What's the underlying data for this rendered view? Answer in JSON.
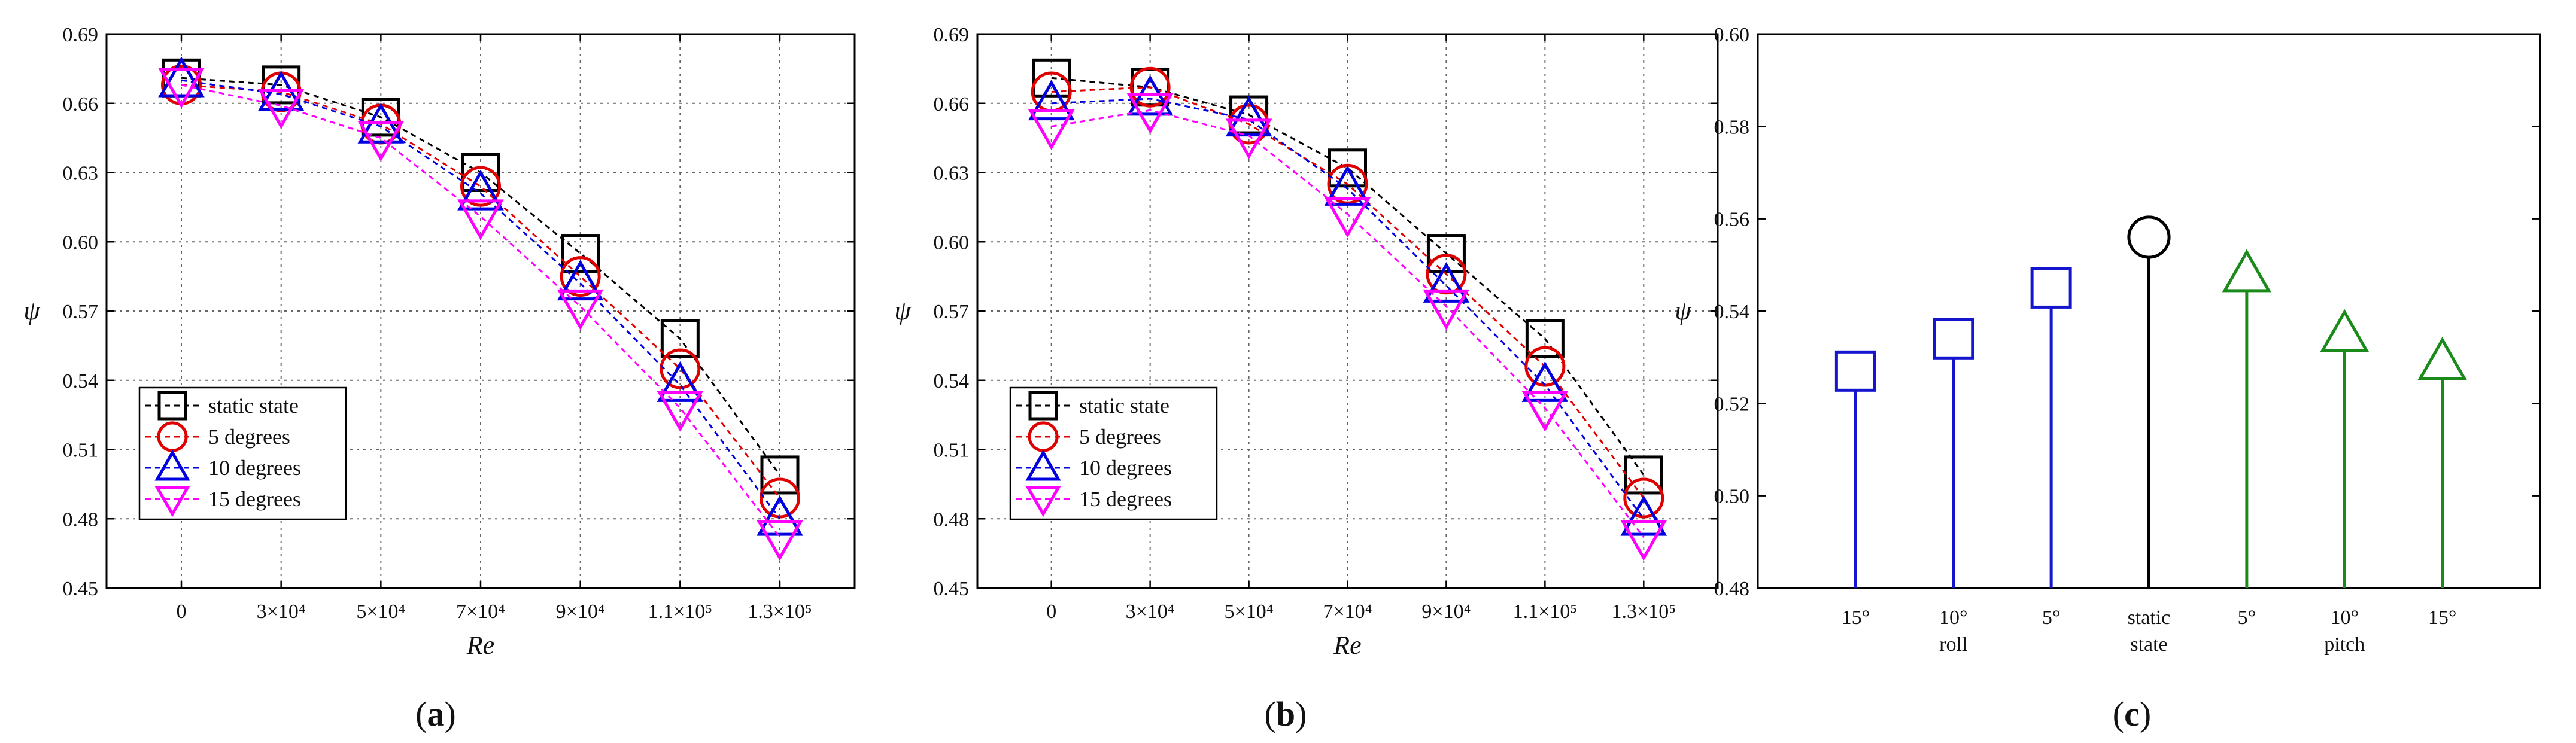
{
  "figure": {
    "labels": [
      {
        "open": "(",
        "letter": "a",
        "close": ")"
      },
      {
        "open": "(",
        "letter": "b",
        "close": ")"
      },
      {
        "open": "(",
        "letter": "c",
        "close": ")"
      }
    ]
  },
  "colors": {
    "static": "#000000",
    "deg5": "#e00000",
    "deg10": "#0000e0",
    "deg15": "#ff00ff",
    "roll": "#1515d0",
    "pitch": "#1a8a1a",
    "grid": "#666666"
  },
  "chart_data": [
    {
      "type": "line",
      "panel": "a",
      "xlabel": "Re",
      "ylabel": "ψ",
      "categories": [
        "0",
        "3×10⁴",
        "5×10⁴",
        "7×10⁴",
        "9×10⁴",
        "1.1×10⁵",
        "1.3×10⁵"
      ],
      "ylim": [
        0.45,
        0.69
      ],
      "yticks": [
        "0.45",
        "0.48",
        "0.51",
        "0.54",
        "0.57",
        "0.60",
        "0.63",
        "0.66",
        "0.69"
      ],
      "grid": true,
      "legend_position": "lower-left",
      "series": [
        {
          "name": "static state",
          "marker": "square",
          "color_key": "static",
          "values": [
            0.671,
            0.668,
            0.654,
            0.63,
            0.595,
            0.558,
            0.499
          ]
        },
        {
          "name": "5 degrees",
          "marker": "circle",
          "color_key": "deg5",
          "values": [
            0.668,
            0.665,
            0.651,
            0.624,
            0.585,
            0.545,
            0.489
          ]
        },
        {
          "name": "10 degrees",
          "marker": "triangle-up",
          "color_key": "deg10",
          "values": [
            0.67,
            0.664,
            0.65,
            0.621,
            0.582,
            0.538,
            0.48
          ]
        },
        {
          "name": "15 degrees",
          "marker": "triangle-down",
          "color_key": "deg15",
          "values": [
            0.668,
            0.659,
            0.645,
            0.611,
            0.572,
            0.528,
            0.472
          ]
        }
      ]
    },
    {
      "type": "line",
      "panel": "b",
      "xlabel": "Re",
      "ylabel": "ψ",
      "categories": [
        "0",
        "3×10⁴",
        "5×10⁴",
        "7×10⁴",
        "9×10⁴",
        "1.1×10⁵",
        "1.3×10⁵"
      ],
      "ylim": [
        0.45,
        0.69
      ],
      "yticks": [
        "0.45",
        "0.48",
        "0.51",
        "0.54",
        "0.57",
        "0.60",
        "0.63",
        "0.66",
        "0.69"
      ],
      "grid": true,
      "legend_position": "lower-left",
      "series": [
        {
          "name": "static state",
          "marker": "square",
          "color_key": "static",
          "values": [
            0.671,
            0.667,
            0.655,
            0.632,
            0.595,
            0.558,
            0.499
          ]
        },
        {
          "name": "5 degrees",
          "marker": "circle",
          "color_key": "deg5",
          "values": [
            0.665,
            0.667,
            0.651,
            0.625,
            0.586,
            0.546,
            0.489
          ]
        },
        {
          "name": "10 degrees",
          "marker": "triangle-up",
          "color_key": "deg10",
          "values": [
            0.66,
            0.662,
            0.653,
            0.623,
            0.581,
            0.538,
            0.48
          ]
        },
        {
          "name": "15 degrees",
          "marker": "triangle-down",
          "color_key": "deg15",
          "values": [
            0.65,
            0.657,
            0.646,
            0.612,
            0.572,
            0.528,
            0.472
          ]
        }
      ]
    },
    {
      "type": "stem",
      "panel": "c",
      "ylabel": "ψ",
      "ylim": [
        0.48,
        0.6
      ],
      "yticks": [
        "0.48",
        "0.50",
        "0.52",
        "0.54",
        "0.56",
        "0.58",
        "0.60"
      ],
      "grid": false,
      "categories": [
        {
          "line1": "15°",
          "line2": ""
        },
        {
          "line1": "10°",
          "line2": "roll"
        },
        {
          "line1": "5°",
          "line2": ""
        },
        {
          "line1": "static",
          "line2": "state"
        },
        {
          "line1": "5°",
          "line2": ""
        },
        {
          "line1": "10°",
          "line2": "pitch"
        },
        {
          "line1": "15°",
          "line2": ""
        }
      ],
      "values": [
        0.527,
        0.534,
        0.545,
        0.556,
        0.548,
        0.535,
        0.529
      ],
      "markers": [
        "square",
        "square",
        "square",
        "circle",
        "triangle-up",
        "triangle-up",
        "triangle-up"
      ],
      "color_keys": [
        "roll",
        "roll",
        "roll",
        "static",
        "pitch",
        "pitch",
        "pitch"
      ]
    }
  ]
}
